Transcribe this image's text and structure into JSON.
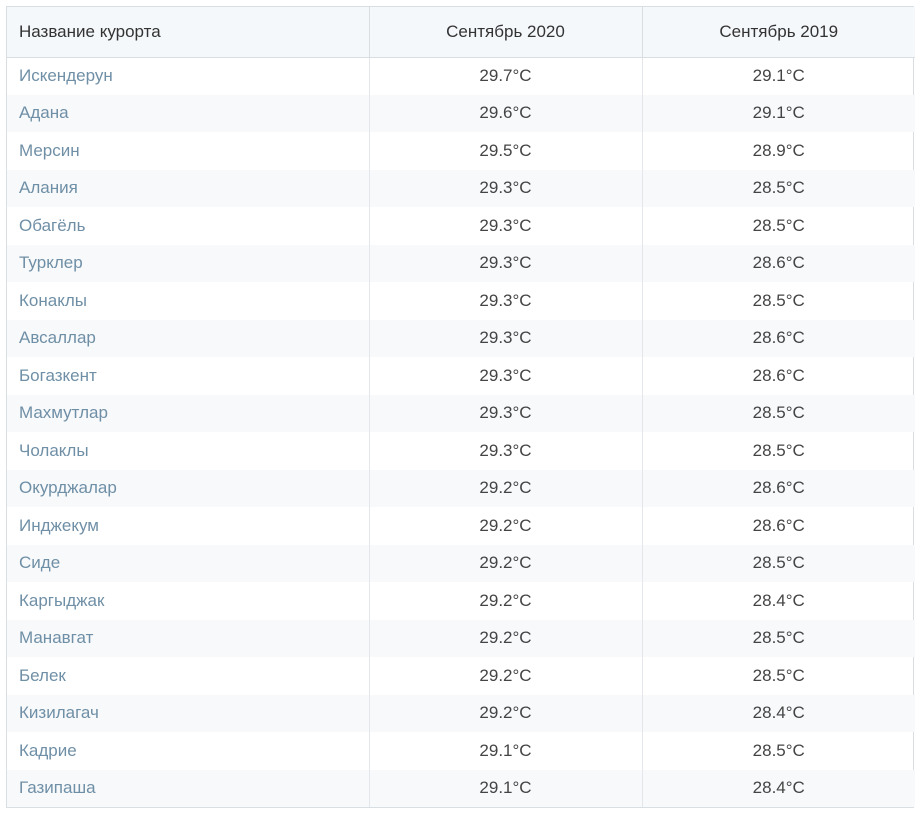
{
  "table": {
    "headers": [
      "Название курорта",
      "Сентябрь 2020",
      "Сентябрь 2019"
    ],
    "rows": [
      {
        "name": "Искендерун",
        "sep2020": "29.7°C",
        "sep2019": "29.1°C"
      },
      {
        "name": "Адана",
        "sep2020": "29.6°C",
        "sep2019": "29.1°C"
      },
      {
        "name": "Мерсин",
        "sep2020": "29.5°C",
        "sep2019": "28.9°C"
      },
      {
        "name": "Алания",
        "sep2020": "29.3°C",
        "sep2019": "28.5°C"
      },
      {
        "name": "Обагёль",
        "sep2020": "29.3°C",
        "sep2019": "28.5°C"
      },
      {
        "name": "Турклер",
        "sep2020": "29.3°C",
        "sep2019": "28.6°C"
      },
      {
        "name": "Конаклы",
        "sep2020": "29.3°C",
        "sep2019": "28.5°C"
      },
      {
        "name": "Авсаллар",
        "sep2020": "29.3°C",
        "sep2019": "28.6°C"
      },
      {
        "name": "Богазкент",
        "sep2020": "29.3°C",
        "sep2019": "28.6°C"
      },
      {
        "name": "Махмутлар",
        "sep2020": "29.3°C",
        "sep2019": "28.5°C"
      },
      {
        "name": "Чолаклы",
        "sep2020": "29.3°C",
        "sep2019": "28.5°C"
      },
      {
        "name": "Окурджалар",
        "sep2020": "29.2°C",
        "sep2019": "28.6°C"
      },
      {
        "name": "Инджекум",
        "sep2020": "29.2°C",
        "sep2019": "28.6°C"
      },
      {
        "name": "Сиде",
        "sep2020": "29.2°C",
        "sep2019": "28.5°C"
      },
      {
        "name": "Каргыджак",
        "sep2020": "29.2°C",
        "sep2019": "28.4°C"
      },
      {
        "name": "Манавгат",
        "sep2020": "29.2°C",
        "sep2019": "28.5°C"
      },
      {
        "name": "Белек",
        "sep2020": "29.2°C",
        "sep2019": "28.5°C"
      },
      {
        "name": "Кизилагач",
        "sep2020": "29.2°C",
        "sep2019": "28.4°C"
      },
      {
        "name": "Кадрие",
        "sep2020": "29.1°C",
        "sep2019": "28.5°C"
      },
      {
        "name": "Газипаша",
        "sep2020": "29.1°C",
        "sep2019": "28.4°C"
      }
    ]
  },
  "colors": {
    "header_background": "#f4f8fb",
    "link_text": "#6f8fa6",
    "border": "#d9dee3",
    "stripe": "#f7f9fb"
  }
}
